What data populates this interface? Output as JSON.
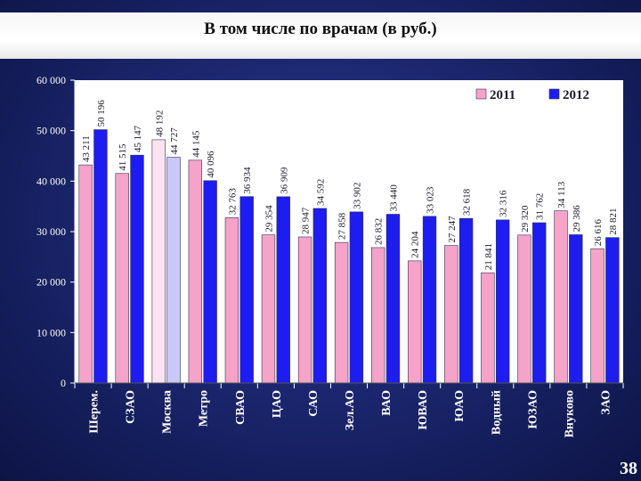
{
  "slide": {
    "title": "В том числе по врачам (в руб.)",
    "page_number": "38"
  },
  "colors": {
    "series_2011": "#f5a3c8",
    "series_2012": "#1d1df0",
    "highlight_2011": "#fbe4f0",
    "highlight_2012": "#c9c9f8",
    "plot_background": "#ffffff",
    "axis_text": "#ffffff"
  },
  "chart_data": {
    "type": "bar",
    "title": "",
    "xlabel": "",
    "ylabel": "",
    "ylim": [
      0,
      60000
    ],
    "y_ticks": [
      "0",
      "10 000",
      "20 000",
      "30 000",
      "40 000",
      "50 000",
      "60 000"
    ],
    "y_tick_values": [
      0,
      10000,
      20000,
      30000,
      40000,
      50000,
      60000
    ],
    "grid": false,
    "legend_position": "top-right",
    "highlighted_category": "Москва",
    "categories": [
      "Шерем.",
      "СЗАО",
      "Москва",
      "Метро",
      "СВАО",
      "ЦАО",
      "САО",
      "Зел.АО",
      "ВАО",
      "ЮВАО",
      "ЮАО",
      "Водный",
      "ЮЗАО",
      "Внуково",
      "ЗАО"
    ],
    "series": [
      {
        "name": "2011",
        "values": [
          43211,
          41515,
          48192,
          44145,
          32763,
          29354,
          28947,
          27858,
          26832,
          24204,
          27247,
          21841,
          29320,
          34113,
          26616
        ],
        "labels": [
          "43 211",
          "41 515",
          "48 192",
          "44 145",
          "32 763",
          "29 354",
          "28 947",
          "27 858",
          "26 832",
          "24 204",
          "27 247",
          "21 841",
          "29 320",
          "34 113",
          "26 616"
        ]
      },
      {
        "name": "2012",
        "values": [
          50196,
          45147,
          44727,
          40096,
          36934,
          36909,
          34592,
          33902,
          33440,
          33023,
          32618,
          32316,
          31762,
          29386,
          28821
        ],
        "labels": [
          "50 196",
          "45 147",
          "44 727",
          "40 096",
          "36 934",
          "36 909",
          "34 592",
          "33 902",
          "33 440",
          "33 023",
          "32 618",
          "32 316",
          "31 762",
          "29 386",
          "28 821"
        ]
      }
    ]
  }
}
